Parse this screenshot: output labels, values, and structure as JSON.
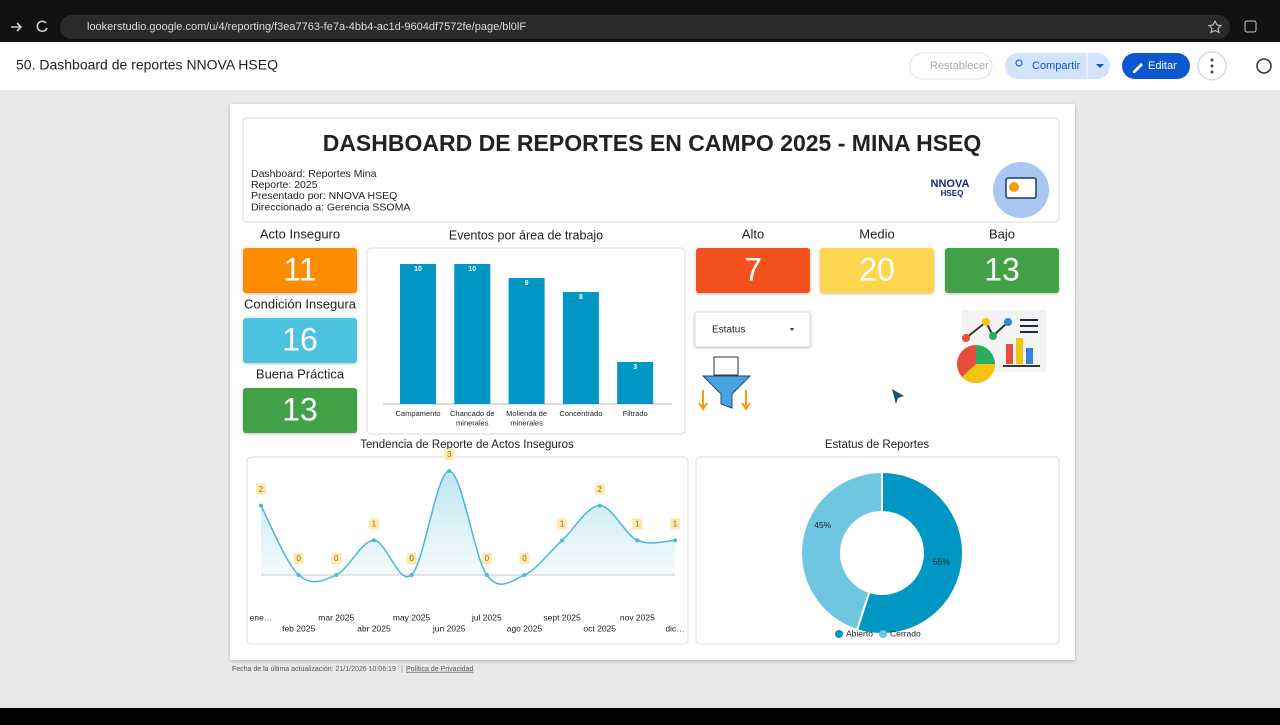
{
  "browser": {
    "url": "lookerstudio.google.com/u/4/reporting/f3ea7763-fe7a-4bb4-ac1d-9604df7572fe/page/bl0lF"
  },
  "toolbar": {
    "title": "50. Dashboard de reportes NNOVA HSEQ",
    "reset": "Restablecer",
    "share": "Compartir",
    "edit": "Editar"
  },
  "header": {
    "title": "DASHBOARD DE REPORTES EN CAMPO 2025 - MINA HSEQ",
    "info": [
      "Dashboard: Reportes Mina",
      "Reporte: 2025",
      "Presentado por: NNOVA HSEQ",
      "Direccionado a: Gerencia SSOMA"
    ],
    "logo": [
      "NNOVA",
      "HSEQ"
    ]
  },
  "scorecards": [
    {
      "label": "Acto Inseguro",
      "value": 11,
      "color": "#fb8c00"
    },
    {
      "label": "Condición Insegura",
      "value": 16,
      "color": "#4ec3e0"
    },
    {
      "label": "Buena Práctica",
      "value": 13,
      "color": "#43a047"
    },
    {
      "label": "Alto",
      "value": 7,
      "color": "#f4511e"
    },
    {
      "label": "Medio",
      "value": 20,
      "color": "#fdd54f"
    },
    {
      "label": "Bajo",
      "value": 13,
      "color": "#43a047"
    }
  ],
  "filter": {
    "label": "Estatus"
  },
  "chart_data": [
    {
      "type": "bar",
      "title": "Eventos por área de trabajo",
      "categories": [
        "Campamento",
        "Chancado de minerales",
        "Molienda de minerales",
        "Concentrado",
        "Filtrado"
      ],
      "values": [
        10,
        10,
        9,
        8,
        3
      ],
      "color": "#0097c4",
      "ylim": [
        0,
        11
      ]
    },
    {
      "type": "line",
      "title": "Tendencia de Reporte de Actos Inseguros",
      "categories": [
        "ene…",
        "feb 2025",
        "mar 2025",
        "abr 2025",
        "may 2025",
        "jun 2025",
        "jul 2025",
        "ago 2025",
        "sept 2025",
        "oct 2025",
        "nov 2025",
        "dic…"
      ],
      "values": [
        2,
        0,
        0,
        1,
        0,
        3,
        0,
        0,
        1,
        2,
        1,
        1
      ],
      "color": "#4ab8d8",
      "ylim": [
        0,
        3
      ]
    },
    {
      "type": "pie",
      "title": "Estatus de Reportes",
      "categories": [
        "Abierto",
        "Cerrado"
      ],
      "values": [
        55,
        45
      ],
      "value_labels": [
        "55%",
        "45%"
      ],
      "colors": [
        "#0097c4",
        "#6ec6e0"
      ],
      "legend": "bottom"
    }
  ],
  "footer": {
    "updated": "Fecha de la última actualización: 21/1/2026 10:06:19",
    "privacy": "Política de Privacidad"
  }
}
